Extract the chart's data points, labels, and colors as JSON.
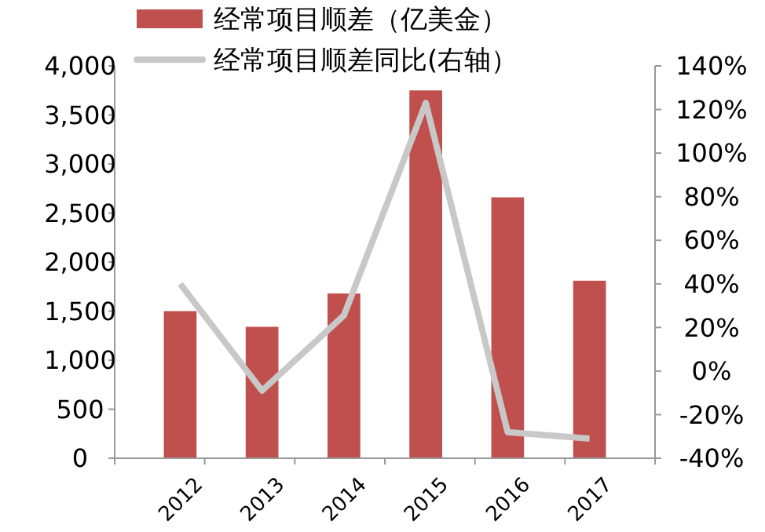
{
  "chart_data": {
    "type": "bar",
    "categories": [
      "2012",
      "2013",
      "2014",
      "2015",
      "2016",
      "2017"
    ],
    "series": [
      {
        "name": "经常项目顺差（亿美金）",
        "color": "#c0504d",
        "values": [
          1500,
          1340,
          1680,
          3750,
          2660,
          1810
        ]
      },
      {
        "name": "经常项目顺差同比(右轴）",
        "type": "line",
        "axis": "y2",
        "color": "#c8c8c8",
        "values": [
          40,
          -9,
          25.5,
          123,
          -28,
          -31
        ]
      }
    ],
    "ylim": [
      0,
      4000
    ],
    "yticks": [
      {
        "value": 0,
        "label": "0"
      },
      {
        "value": 500,
        "label": "500"
      },
      {
        "value": 1000,
        "label": "1,000"
      },
      {
        "value": 1500,
        "label": "1,500"
      },
      {
        "value": 2000,
        "label": "2,000"
      },
      {
        "value": 2500,
        "label": "2,500"
      },
      {
        "value": 3000,
        "label": "3,000"
      },
      {
        "value": 3500,
        "label": "3,500"
      },
      {
        "value": 4000,
        "label": "4,000"
      }
    ],
    "y2lim": [
      -40,
      140
    ],
    "y2ticks": [
      {
        "value": -40,
        "label": "-40%"
      },
      {
        "value": -20,
        "label": "-20%"
      },
      {
        "value": 0,
        "label": "0%"
      },
      {
        "value": 20,
        "label": "20%"
      },
      {
        "value": 40,
        "label": "40%"
      },
      {
        "value": 60,
        "label": "60%"
      },
      {
        "value": 80,
        "label": "80%"
      },
      {
        "value": 100,
        "label": "100%"
      },
      {
        "value": 120,
        "label": "120%"
      },
      {
        "value": 140,
        "label": "140%"
      }
    ],
    "grid": false,
    "legend": "top"
  }
}
